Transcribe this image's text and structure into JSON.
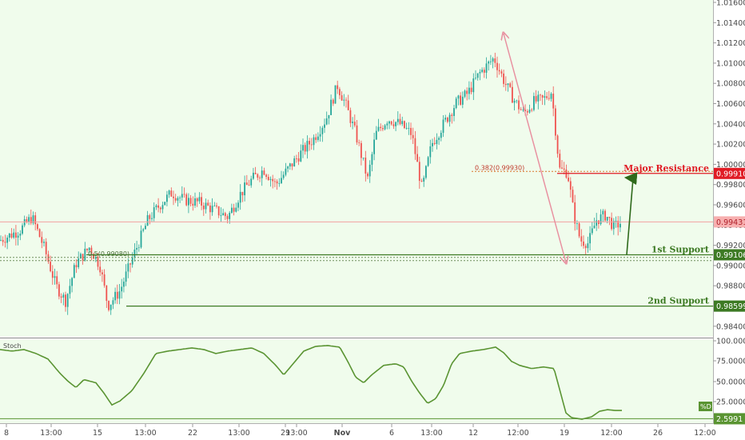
{
  "chart_data": {
    "type": "candlestick",
    "colors": {
      "background": "#f0fcec",
      "bull": "#26a69a",
      "bear": "#ef5350",
      "support": "#3d7a24",
      "resistance": "#e01b24",
      "current_price": "#f2a0a0",
      "oscillator": "#5a9432",
      "axis_text": "#4a4a4a"
    },
    "price_axis": {
      "range": [
        0.9834,
        1.0172
      ],
      "ticks": [
        "1.01600",
        "1.01400",
        "1.01200",
        "1.01000",
        "1.00800",
        "1.00600",
        "1.00400",
        "1.00200",
        "1.00000",
        "0.99800",
        "0.99600",
        "0.99400",
        "0.99200",
        "0.99000",
        "0.98800",
        "0.98600",
        "0.98400"
      ]
    },
    "time_axis": {
      "ticks": [
        "8",
        "13:00",
        "15",
        "13:00",
        "22",
        "13:00",
        "29",
        "13:00",
        "Nov",
        "6",
        "13:00",
        "12",
        "12:00",
        "19",
        "12:00",
        "26",
        "12:00"
      ]
    },
    "price_path": [
      [
        0,
        0.9925
      ],
      [
        25,
        0.9935
      ],
      [
        40,
        0.9948
      ],
      [
        55,
        0.9918
      ],
      [
        70,
        0.988
      ],
      [
        82,
        0.9865
      ],
      [
        95,
        0.9902
      ],
      [
        112,
        0.9918
      ],
      [
        125,
        0.99
      ],
      [
        135,
        0.986
      ],
      [
        150,
        0.9875
      ],
      [
        168,
        0.9912
      ],
      [
        185,
        0.9945
      ],
      [
        200,
        0.996
      ],
      [
        215,
        0.9972
      ],
      [
        230,
        0.9965
      ],
      [
        250,
        0.9962
      ],
      [
        268,
        0.9955
      ],
      [
        285,
        0.9948
      ],
      [
        300,
        0.997
      ],
      [
        315,
        0.9985
      ],
      [
        330,
        0.9995
      ],
      [
        345,
        0.998
      ],
      [
        360,
        0.9995
      ],
      [
        375,
        1.001
      ],
      [
        392,
        1.0025
      ],
      [
        408,
        1.0045
      ],
      [
        422,
        1.0078
      ],
      [
        432,
        1.006
      ],
      [
        445,
        1.003
      ],
      [
        460,
        0.9985
      ],
      [
        470,
        1.003
      ],
      [
        485,
        1.0045
      ],
      [
        500,
        1.004
      ],
      [
        515,
        1.003
      ],
      [
        528,
        0.9975
      ],
      [
        540,
        1.002
      ],
      [
        555,
        1.004
      ],
      [
        570,
        1.006
      ],
      [
        585,
        1.007
      ],
      [
        600,
        1.009
      ],
      [
        618,
        1.0105
      ],
      [
        632,
        1.008
      ],
      [
        642,
        1.0065
      ],
      [
        655,
        1.005
      ],
      [
        668,
        1.0062
      ],
      [
        680,
        1.0064
      ],
      [
        690,
        1.0072
      ],
      [
        700,
        0.9995
      ],
      [
        710,
        0.9992
      ],
      [
        718,
        0.995
      ],
      [
        726,
        0.9925
      ],
      [
        736,
        0.9922
      ],
      [
        746,
        0.9945
      ],
      [
        758,
        0.995
      ],
      [
        768,
        0.9938
      ],
      [
        778,
        0.9943
      ]
    ],
    "current_price": {
      "label": "0.99431",
      "value": 0.99431
    },
    "levels": [
      {
        "name": "Major Resistance",
        "label": "0.99910",
        "value": 0.9991,
        "kind": "resistance"
      },
      {
        "name": "1st Support",
        "label": "0.99106",
        "value": 0.99106,
        "kind": "support"
      },
      {
        "name": "2nd Support",
        "label": "0.98599",
        "value": 0.98599,
        "kind": "support"
      }
    ],
    "fib_annotations": [
      {
        "text": "0.382(0.99930)",
        "value": 0.9993
      },
      {
        "text": "0.5(0.99080)",
        "value": 0.9908
      }
    ],
    "oscillator": {
      "name": "Stoch",
      "badge": "%D",
      "badge_value": "2.5991",
      "range": [
        0,
        100
      ],
      "ticks": [
        "100.0000",
        "75.0000",
        "50.0000",
        "25.0000"
      ],
      "values": [
        [
          0,
          90
        ],
        [
          15,
          88
        ],
        [
          30,
          90
        ],
        [
          45,
          85
        ],
        [
          60,
          78
        ],
        [
          75,
          60
        ],
        [
          85,
          50
        ],
        [
          95,
          42
        ],
        [
          105,
          52
        ],
        [
          120,
          48
        ],
        [
          130,
          35
        ],
        [
          140,
          20
        ],
        [
          150,
          25
        ],
        [
          165,
          38
        ],
        [
          180,
          60
        ],
        [
          195,
          85
        ],
        [
          210,
          88
        ],
        [
          225,
          90
        ],
        [
          240,
          92
        ],
        [
          255,
          90
        ],
        [
          270,
          85
        ],
        [
          285,
          88
        ],
        [
          300,
          90
        ],
        [
          315,
          92
        ],
        [
          330,
          85
        ],
        [
          345,
          70
        ],
        [
          355,
          58
        ],
        [
          365,
          70
        ],
        [
          380,
          88
        ],
        [
          395,
          94
        ],
        [
          410,
          95
        ],
        [
          425,
          93
        ],
        [
          435,
          75
        ],
        [
          445,
          55
        ],
        [
          455,
          48
        ],
        [
          465,
          58
        ],
        [
          480,
          70
        ],
        [
          495,
          72
        ],
        [
          505,
          68
        ],
        [
          515,
          50
        ],
        [
          525,
          35
        ],
        [
          535,
          22
        ],
        [
          545,
          28
        ],
        [
          555,
          45
        ],
        [
          565,
          72
        ],
        [
          575,
          85
        ],
        [
          590,
          88
        ],
        [
          605,
          90
        ],
        [
          620,
          93
        ],
        [
          630,
          86
        ],
        [
          640,
          75
        ],
        [
          650,
          70
        ],
        [
          665,
          66
        ],
        [
          680,
          68
        ],
        [
          693,
          66
        ],
        [
          700,
          40
        ],
        [
          708,
          10
        ],
        [
          715,
          4
        ],
        [
          728,
          2
        ],
        [
          740,
          5
        ],
        [
          750,
          12
        ],
        [
          760,
          14
        ],
        [
          770,
          13
        ],
        [
          778,
          13
        ]
      ]
    }
  }
}
